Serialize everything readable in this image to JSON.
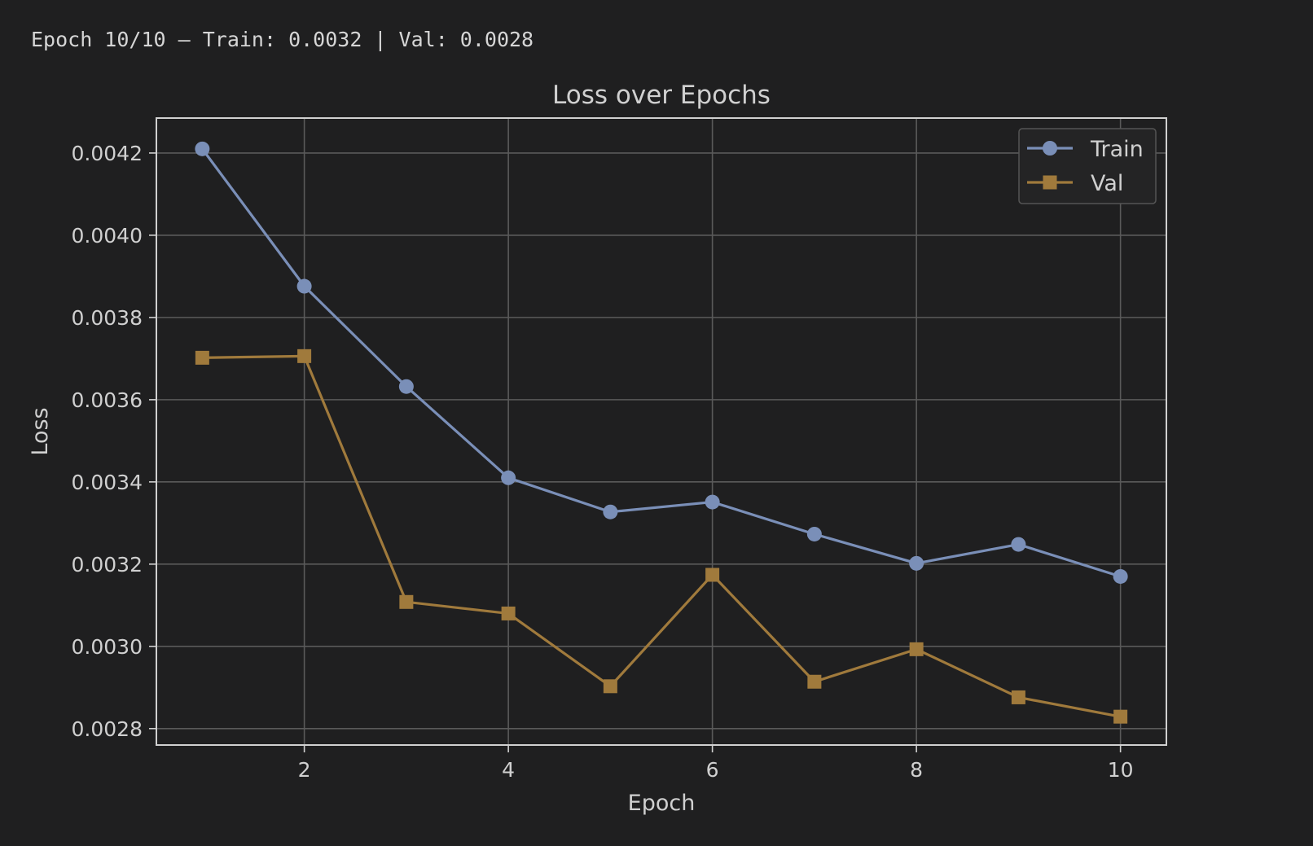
{
  "status": {
    "text": "Epoch 10/10 — Train: 0.0032 | Val: 0.0028"
  },
  "colors": {
    "background": "#1f1f20",
    "axes_frame": "#d0d0d0",
    "grid": "#5a5a5a",
    "text": "#d0d0d0",
    "train": "#7a8fb8",
    "val": "#a07a3c"
  },
  "chart_data": {
    "type": "line",
    "title": "Loss over Epochs",
    "xlabel": "Epoch",
    "ylabel": "Loss",
    "xlim": [
      0.55,
      10.45
    ],
    "ylim": [
      0.00276,
      0.004285
    ],
    "xticks": [
      2,
      4,
      6,
      8,
      10
    ],
    "yticks": [
      0.0028,
      0.003,
      0.0032,
      0.0034,
      0.0036,
      0.0038,
      0.004,
      0.0042
    ],
    "ytick_labels": [
      "0.0028",
      "0.0030",
      "0.0032",
      "0.0034",
      "0.0036",
      "0.0038",
      "0.0040",
      "0.0042"
    ],
    "grid": true,
    "legend_position": "top-right",
    "x": [
      1,
      2,
      3,
      4,
      5,
      6,
      7,
      8,
      9,
      10
    ],
    "series": [
      {
        "name": "Train",
        "marker": "circle",
        "color": "#7a8fb8",
        "values": [
          0.00421,
          0.003876,
          0.003632,
          0.00341,
          0.003327,
          0.003351,
          0.003273,
          0.003202,
          0.003248,
          0.00317
        ]
      },
      {
        "name": "Val",
        "marker": "square",
        "color": "#a07a3c",
        "values": [
          0.003702,
          0.003706,
          0.003108,
          0.00308,
          0.002903,
          0.003174,
          0.002914,
          0.002993,
          0.002876,
          0.002829
        ]
      }
    ]
  }
}
